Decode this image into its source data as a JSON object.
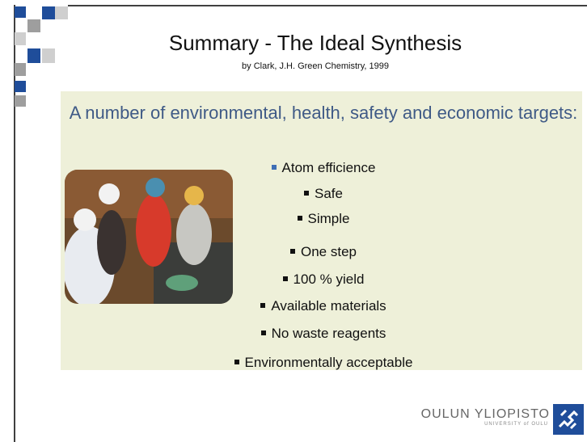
{
  "slide": {
    "title": "Summary - The Ideal Synthesis",
    "subtitle": "by Clark, J.H. Green Chemistry, 1999",
    "heading": "A number of environmental, health, safety and economic targets:",
    "bullets": [
      "Atom efficience",
      "Safe",
      "Simple",
      "One step",
      "100 % yield",
      "Available materials",
      "No waste reagents",
      "Environmentally acceptable"
    ],
    "logo": {
      "name": "OULUN YLIOPISTO",
      "subname": "UNIVERSITY of OULU"
    }
  }
}
